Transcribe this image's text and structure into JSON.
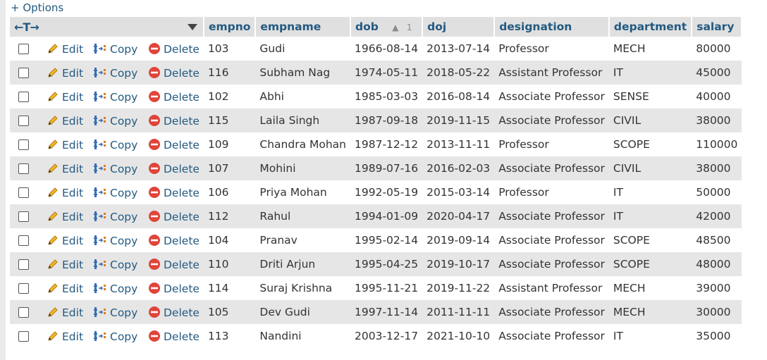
{
  "options_label": "+ Options",
  "header": {
    "arrows": "←T→",
    "columns": [
      "empno",
      "empname",
      "dob",
      "doj",
      "designation",
      "department",
      "salary"
    ],
    "sort_rank": "1"
  },
  "actions": {
    "edit": "Edit",
    "copy": "Copy",
    "delete": "Delete"
  },
  "rows": [
    [
      "103",
      "Gudi",
      "1966-08-14",
      "2013-07-14",
      "Professor",
      "MECH",
      "80000"
    ],
    [
      "116",
      "Subham Nag",
      "1974-05-11",
      "2018-05-22",
      "Assistant Professor",
      "IT",
      "45000"
    ],
    [
      "102",
      "Abhi",
      "1985-03-03",
      "2016-08-14",
      "Associate Professor",
      "SENSE",
      "40000"
    ],
    [
      "115",
      "Laila Singh",
      "1987-09-18",
      "2019-11-15",
      "Associate Professor",
      "CIVIL",
      "38000"
    ],
    [
      "109",
      "Chandra Mohan",
      "1987-12-12",
      "2013-11-11",
      "Professor",
      "SCOPE",
      "110000"
    ],
    [
      "107",
      "Mohini",
      "1989-07-16",
      "2016-02-03",
      "Associate Professor",
      "CIVIL",
      "38000"
    ],
    [
      "106",
      "Priya Mohan",
      "1992-05-19",
      "2015-03-14",
      "Professor",
      "IT",
      "50000"
    ],
    [
      "112",
      "Rahul",
      "1994-01-09",
      "2020-04-17",
      "Associate Professor",
      "IT",
      "42000"
    ],
    [
      "104",
      "Pranav",
      "1995-02-14",
      "2019-09-14",
      "Associate Professor",
      "SCOPE",
      "48500"
    ],
    [
      "110",
      "Driti Arjun",
      "1995-04-25",
      "2019-10-17",
      "Associate Professor",
      "SCOPE",
      "48000"
    ],
    [
      "114",
      "Suraj Krishna",
      "1995-11-21",
      "2019-11-22",
      "Assistant Professor",
      "MECH",
      "39000"
    ],
    [
      "105",
      "Dev Gudi",
      "1997-11-14",
      "2011-11-11",
      "Associate Professor",
      "MECH",
      "30000"
    ],
    [
      "113",
      "Nandini",
      "2003-12-17",
      "2021-10-10",
      "Associate Professor",
      "IT",
      "35000"
    ]
  ],
  "colors": {
    "link": "#235a81",
    "header_bg": "#e0e0e0",
    "row_alt": "#e6e6e6",
    "delete_red": "#e0443a"
  }
}
